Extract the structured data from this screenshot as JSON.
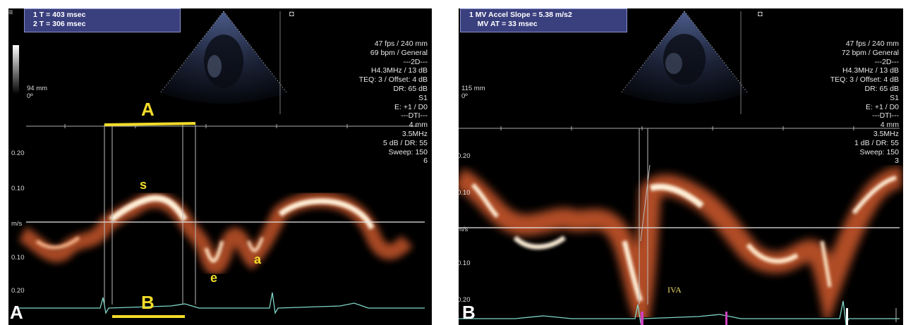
{
  "panel_a": {
    "letter": "A",
    "measurements": [
      "1  T = 403 msec",
      "2  T = 306 msec"
    ],
    "depth": [
      "94 mm",
      "0º"
    ],
    "params": [
      "47 fps / 240 mm",
      "69 bpm / General",
      "---2D---",
      "H4.3MHz / 13 dB",
      "TEQ: 3 / Offset: 4 dB",
      "DR: 65 dB",
      "S1",
      "E: +1 / D0",
      "---DTI---",
      "4 mm",
      "3.5MHz",
      "5 dB / DR: 55",
      "Sweep: 150",
      "6"
    ],
    "scale_labels": [
      "0.20",
      "0.10",
      "m/s",
      "0.10",
      "0.20"
    ],
    "annotations": {
      "top_bracket": "A",
      "bottom_bracket": "B",
      "s_wave": "s",
      "e_wave": "e",
      "a_wave": "a"
    }
  },
  "panel_b": {
    "letter": "B",
    "measurements": [
      "1  MV Accel Slope = 5.38 m/s2",
      "    MV AT = 33 msec"
    ],
    "depth": [
      "115 mm",
      "0º"
    ],
    "params": [
      "47 fps / 240 mm",
      "72 bpm / General",
      "---2D---",
      "H4.3MHz / 13 dB",
      "TEQ: 3 / Offset: 4 dB",
      "DR: 65 dB",
      "S1",
      "E: +1 / D0",
      "---DTI---",
      "4 mm",
      "3.5MHz",
      "1 dB / DR: 55",
      "Sweep: 150",
      "3"
    ],
    "scale_labels": [
      "0.20",
      "0.10",
      "m/s",
      "0.10",
      "0.20"
    ],
    "annotations": {
      "iva": "IVA"
    }
  },
  "colors": {
    "doppler": "#f0a070",
    "doppler_core": "#fff4e0",
    "annotation": "#f2dc2a",
    "measure_box": "#3a3f7e",
    "ecg": "#7fd6c8",
    "marker": "#d040c0"
  }
}
